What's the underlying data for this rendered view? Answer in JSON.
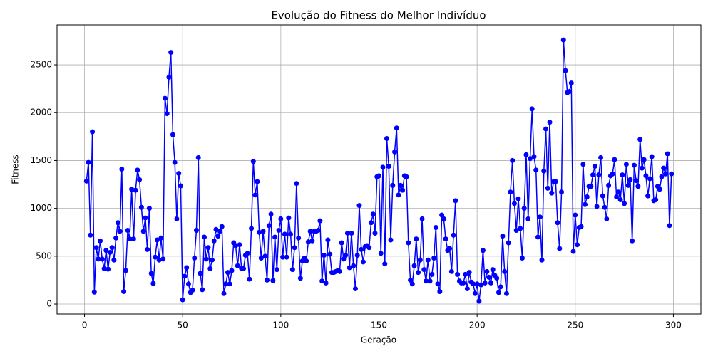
{
  "chart_data": {
    "type": "line",
    "title": "Evolução do Fitness do Melhor Indivíduo",
    "x_label": "Geração",
    "y_label": "Fitness",
    "xlim": [
      -14,
      314
    ],
    "ylim": [
      -104,
      2917
    ],
    "xticks": [
      0,
      50,
      100,
      150,
      200,
      250,
      300
    ],
    "yticks": [
      0,
      500,
      1000,
      1500,
      2000,
      2500
    ],
    "grid": true,
    "x": [
      1,
      2,
      3,
      4,
      5,
      6,
      7,
      8,
      9,
      10,
      11,
      12,
      13,
      14,
      15,
      16,
      17,
      18,
      19,
      20,
      21,
      22,
      23,
      24,
      25,
      26,
      27,
      28,
      29,
      30,
      31,
      32,
      33,
      34,
      35,
      36,
      37,
      38,
      39,
      40,
      41,
      42,
      43,
      44,
      45,
      46,
      47,
      48,
      49,
      50,
      51,
      52,
      53,
      54,
      55,
      56,
      57,
      58,
      59,
      60,
      61,
      62,
      63,
      64,
      65,
      66,
      67,
      68,
      69,
      70,
      71,
      72,
      73,
      74,
      75,
      76,
      77,
      78,
      79,
      80,
      81,
      82,
      83,
      84,
      85,
      86,
      87,
      88,
      89,
      90,
      91,
      92,
      93,
      94,
      95,
      96,
      97,
      98,
      99,
      100,
      101,
      102,
      103,
      104,
      105,
      106,
      107,
      108,
      109,
      110,
      111,
      112,
      113,
      114,
      115,
      116,
      117,
      118,
      119,
      120,
      121,
      122,
      123,
      124,
      125,
      126,
      127,
      128,
      129,
      130,
      131,
      132,
      133,
      134,
      135,
      136,
      137,
      138,
      139,
      140,
      141,
      142,
      143,
      144,
      145,
      146,
      147,
      148,
      149,
      150,
      151,
      152,
      153,
      154,
      155,
      156,
      157,
      158,
      159,
      160,
      161,
      162,
      163,
      164,
      165,
      166,
      167,
      168,
      169,
      170,
      171,
      172,
      173,
      174,
      175,
      176,
      177,
      178,
      179,
      180,
      181,
      182,
      183,
      184,
      185,
      186,
      187,
      188,
      189,
      190,
      191,
      192,
      193,
      194,
      195,
      196,
      197,
      198,
      199,
      200,
      201,
      202,
      203,
      204,
      205,
      206,
      207,
      208,
      209,
      210,
      211,
      212,
      213,
      214,
      215,
      216,
      217,
      218,
      219,
      220,
      221,
      222,
      223,
      224,
      225,
      226,
      227,
      228,
      229,
      230,
      231,
      232,
      233,
      234,
      235,
      236,
      237,
      238,
      239,
      240,
      241,
      242,
      243,
      244,
      245,
      246,
      247,
      248,
      249,
      250,
      251,
      252,
      253,
      254,
      255,
      256,
      257,
      258,
      259,
      260,
      261,
      262,
      263,
      264,
      265,
      266,
      267,
      268,
      269,
      270,
      271,
      272,
      273,
      274,
      275,
      276,
      277,
      278,
      279,
      280,
      281,
      282,
      283,
      284,
      285,
      286,
      287,
      288,
      289,
      290,
      291,
      292,
      293,
      294,
      295,
      296,
      297,
      298,
      299
    ],
    "series": [
      {
        "color": "#0000ff",
        "values": [
          1285,
          1480,
          720,
          1800,
          125,
          590,
          470,
          660,
          470,
          370,
          560,
          365,
          540,
          590,
          460,
          690,
          850,
          760,
          1410,
          130,
          350,
          770,
          680,
          1200,
          680,
          1190,
          1400,
          1300,
          1010,
          760,
          900,
          570,
          1000,
          320,
          215,
          490,
          670,
          460,
          690,
          470,
          2150,
          1990,
          2370,
          2630,
          1770,
          1480,
          890,
          1365,
          1235,
          45,
          290,
          380,
          210,
          120,
          145,
          480,
          770,
          1530,
          320,
          150,
          700,
          470,
          590,
          370,
          460,
          660,
          780,
          710,
          760,
          810,
          110,
          210,
          330,
          210,
          350,
          640,
          610,
          400,
          620,
          370,
          370,
          510,
          530,
          260,
          790,
          1490,
          1140,
          1280,
          750,
          480,
          760,
          500,
          250,
          820,
          940,
          245,
          700,
          360,
          770,
          890,
          490,
          730,
          490,
          900,
          730,
          360,
          590,
          1260,
          690,
          270,
          450,
          480,
          450,
          650,
          760,
          660,
          760,
          760,
          770,
          870,
          240,
          510,
          220,
          670,
          520,
          330,
          330,
          340,
          350,
          340,
          640,
          470,
          510,
          740,
          380,
          740,
          400,
          160,
          510,
          1030,
          570,
          440,
          600,
          610,
          590,
          850,
          940,
          740,
          1330,
          1340,
          530,
          1430,
          420,
          1730,
          1440,
          670,
          1240,
          1590,
          1840,
          1140,
          1240,
          1190,
          1340,
          1330,
          640,
          250,
          210,
          400,
          680,
          330,
          460,
          890,
          360,
          240,
          460,
          240,
          310,
          480,
          800,
          210,
          130,
          930,
          890,
          680,
          560,
          580,
          340,
          720,
          1080,
          310,
          240,
          220,
          220,
          310,
          160,
          330,
          230,
          210,
          110,
          210,
          30,
          200,
          560,
          220,
          340,
          280,
          220,
          360,
          300,
          270,
          120,
          180,
          710,
          340,
          110,
          640,
          1170,
          1500,
          1050,
          770,
          1100,
          790,
          480,
          1000,
          1560,
          890,
          1520,
          2040,
          1540,
          1400,
          700,
          910,
          460,
          1390,
          1830,
          1210,
          1900,
          1160,
          1280,
          1280,
          850,
          580,
          1170,
          2760,
          2440,
          2210,
          2220,
          2310,
          550,
          930,
          620,
          800,
          810,
          1460,
          1040,
          1120,
          1230,
          1230,
          1350,
          1440,
          1020,
          1350,
          1530,
          1130,
          1010,
          890,
          1240,
          1340,
          1360,
          1510,
          1120,
          1170,
          1090,
          1350,
          1050,
          1460,
          1240,
          1300,
          660,
          1450,
          1290,
          1230,
          1720,
          1420,
          1510,
          1340,
          1130,
          1310,
          1540,
          1080,
          1090,
          1230,
          1200,
          1330,
          1420,
          1360,
          1570,
          820,
          1360
        ]
      }
    ]
  }
}
